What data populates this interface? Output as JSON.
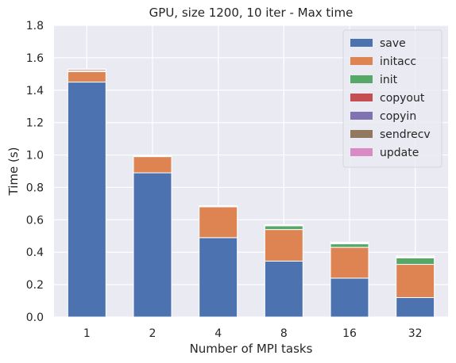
{
  "chart_data": {
    "type": "bar",
    "stacked": true,
    "title": "GPU, size 1200, 10 iter - Max time",
    "xlabel": "Number of MPI tasks",
    "ylabel": "Time (s)",
    "categories": [
      "1",
      "2",
      "4",
      "8",
      "16",
      "32"
    ],
    "ylim": [
      0,
      1.8
    ],
    "yticks": [
      0.0,
      0.2,
      0.4,
      0.6,
      0.8,
      1.0,
      1.2,
      1.4,
      1.6,
      1.8
    ],
    "ytick_labels": [
      "0.0",
      "0.2",
      "0.4",
      "0.6",
      "0.8",
      "1.0",
      "1.2",
      "1.4",
      "1.6",
      "1.8"
    ],
    "grid": true,
    "legend_position": "top-right",
    "series": [
      {
        "name": "save",
        "color": "#4c72b0",
        "values": [
          1.45,
          0.89,
          0.49,
          0.345,
          0.24,
          0.12
        ]
      },
      {
        "name": "initacc",
        "color": "#dd8452",
        "values": [
          0.065,
          0.1,
          0.19,
          0.195,
          0.19,
          0.205
        ]
      },
      {
        "name": "init",
        "color": "#55a868",
        "values": [
          0.005,
          0.003,
          0.003,
          0.023,
          0.022,
          0.04
        ]
      },
      {
        "name": "copyout",
        "color": "#c44e52",
        "values": [
          0.008,
          0.002,
          0.002,
          0.002,
          0.002,
          0.003
        ]
      },
      {
        "name": "copyin",
        "color": "#8172b3",
        "values": [
          0.001,
          0.001,
          0.001,
          0.001,
          0.001,
          0.001
        ]
      },
      {
        "name": "sendrecv",
        "color": "#937860",
        "values": [
          0.0,
          0.0,
          0.0,
          0.002,
          0.005,
          0.006
        ]
      },
      {
        "name": "update",
        "color": "#da8bc3",
        "values": [
          0.001,
          0.001,
          0.001,
          0.002,
          0.002,
          0.002
        ]
      }
    ],
    "colors": {
      "plot_background": "#eaeaf2",
      "grid": "#ffffff",
      "text": "#262626"
    }
  }
}
